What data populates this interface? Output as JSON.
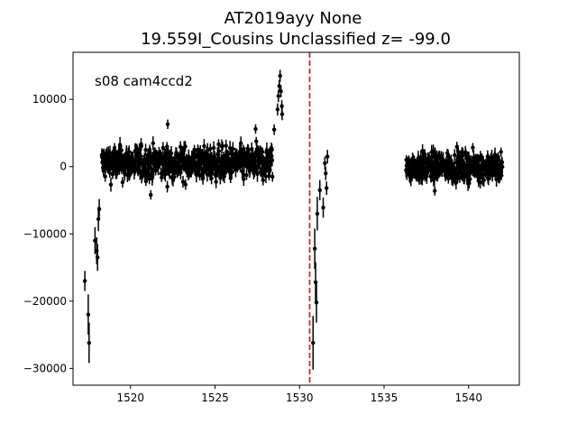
{
  "chart_data": {
    "type": "scatter",
    "title_lines": [
      "AT2019ayy  None",
      "19.559I_Cousins Unclassified z= -99.0"
    ],
    "annotation": "s08 cam4ccd2",
    "xlabel": "",
    "ylabel": "",
    "xlim": [
      1516.6,
      1543.0
    ],
    "ylim": [
      -32500,
      17000
    ],
    "xticks": [
      1520,
      1525,
      1530,
      1535,
      1540
    ],
    "yticks": [
      -30000,
      -20000,
      -10000,
      0,
      10000
    ],
    "xtick_labels": [
      "1520",
      "1525",
      "1530",
      "1535",
      "1540"
    ],
    "ytick_labels": [
      "−30000",
      "−20000",
      "−10000",
      "0",
      "10000"
    ],
    "grid": false,
    "marker_color": "#000000",
    "vline": {
      "x": 1530.6,
      "color": "#d62728",
      "style": "dashed"
    },
    "series": [
      {
        "points": [
          {
            "x": 1517.3,
            "y": -17000,
            "err": 1500
          },
          {
            "x": 1517.5,
            "y": -22000,
            "err": 3000
          },
          {
            "x": 1517.55,
            "y": -26200,
            "err": 3000
          },
          {
            "x": 1517.9,
            "y": -11000,
            "err": 2000
          },
          {
            "x": 1518.0,
            "y": -12500,
            "err": 2000
          },
          {
            "x": 1518.05,
            "y": -13500,
            "err": 2000
          },
          {
            "x": 1518.1,
            "y": -7800,
            "err": 1800
          },
          {
            "x": 1518.15,
            "y": -6300,
            "err": 1500
          },
          {
            "x": 1528.5,
            "y": 5500,
            "err": 800
          },
          {
            "x": 1528.7,
            "y": 8500,
            "err": 900
          },
          {
            "x": 1528.75,
            "y": 10500,
            "err": 900
          },
          {
            "x": 1528.8,
            "y": 12000,
            "err": 900
          },
          {
            "x": 1528.85,
            "y": 13500,
            "err": 900
          },
          {
            "x": 1528.9,
            "y": 11200,
            "err": 900
          },
          {
            "x": 1528.95,
            "y": 9000,
            "err": 900
          },
          {
            "x": 1528.97,
            "y": 7800,
            "err": 900
          },
          {
            "x": 1530.8,
            "y": -26200,
            "err": 4000
          },
          {
            "x": 1530.9,
            "y": -12200,
            "err": 3000
          },
          {
            "x": 1530.95,
            "y": -17200,
            "err": 3000
          },
          {
            "x": 1531.0,
            "y": -20200,
            "err": 3000
          },
          {
            "x": 1531.05,
            "y": -7000,
            "err": 2500
          },
          {
            "x": 1531.2,
            "y": -3500,
            "err": 1500
          },
          {
            "x": 1531.4,
            "y": -6100,
            "err": 1500
          },
          {
            "x": 1531.5,
            "y": 500,
            "err": 1000
          },
          {
            "x": 1531.55,
            "y": -1000,
            "err": 1000
          },
          {
            "x": 1531.6,
            "y": -3200,
            "err": 1000
          },
          {
            "x": 1531.65,
            "y": 1500,
            "err": 1000
          },
          {
            "x": 1521.2,
            "y": -4200,
            "err": 700
          },
          {
            "x": 1522.2,
            "y": 6300,
            "err": 700
          },
          {
            "x": 1527.4,
            "y": 5600,
            "err": 700
          },
          {
            "x": 1538.0,
            "y": -3600,
            "err": 700
          }
        ],
        "dense_segments": [
          {
            "x_start": 1518.3,
            "x_end": 1528.4,
            "y_center": 500,
            "y_spread": 2400,
            "n": 600,
            "err": 900
          },
          {
            "x_start": 1536.3,
            "x_end": 1542.0,
            "y_center": 0,
            "y_spread": 2000,
            "n": 340,
            "err": 900
          }
        ]
      }
    ]
  }
}
